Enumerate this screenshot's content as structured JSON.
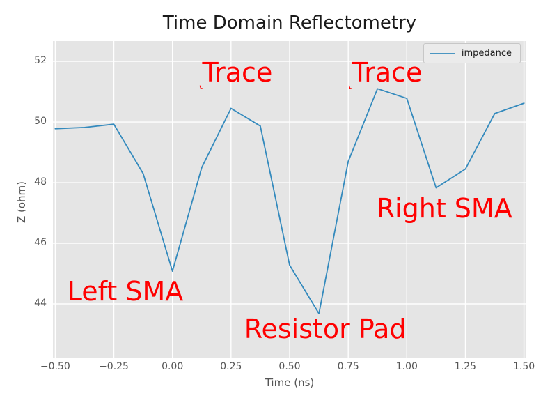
{
  "title": "Time Domain Reflectometry",
  "xlabel": "Time (ns)",
  "ylabel": "Z (ohm)",
  "legend": {
    "label": "impedance"
  },
  "colors": {
    "line": "#348abd",
    "annotation": "#ff0000",
    "plot_bg": "#e5e5e5",
    "grid": "#ffffff",
    "tick_text": "#555555"
  },
  "chart_data": {
    "type": "line",
    "title": "Time Domain Reflectometry",
    "xlabel": "Time (ns)",
    "ylabel": "Z (ohm)",
    "grid": true,
    "legend_position": "upper right",
    "xlim": [
      -0.51,
      1.51
    ],
    "ylim": [
      42.23,
      52.67
    ],
    "xticks": [
      -0.5,
      -0.25,
      0.0,
      0.25,
      0.5,
      0.75,
      1.0,
      1.25,
      1.5
    ],
    "xtick_labels": [
      "−0.50",
      "−0.25",
      "0.00",
      "0.25",
      "0.50",
      "0.75",
      "1.00",
      "1.25",
      "1.50"
    ],
    "yticks": [
      44,
      46,
      48,
      50,
      52
    ],
    "ytick_labels": [
      "44",
      "46",
      "48",
      "50",
      "52"
    ],
    "series": [
      {
        "name": "impedance",
        "x": [
          -0.5,
          -0.375,
          -0.25,
          -0.125,
          0.0,
          0.125,
          0.25,
          0.375,
          0.5,
          0.625,
          0.75,
          0.875,
          1.0,
          1.125,
          1.25,
          1.375,
          1.5
        ],
        "y": [
          49.78,
          49.82,
          49.93,
          48.3,
          45.08,
          48.5,
          50.45,
          49.87,
          45.28,
          43.68,
          48.7,
          51.1,
          50.78,
          47.83,
          48.45,
          50.28,
          50.62
        ]
      }
    ],
    "annotations": [
      {
        "text": "Trace",
        "x": 0.277,
        "y": 51.61
      },
      {
        "text": "Trace",
        "x": 0.916,
        "y": 51.61
      },
      {
        "text": "Left SMA",
        "x": -0.201,
        "y": 44.4
      },
      {
        "text": "Right SMA",
        "x": 1.16,
        "y": 47.13
      },
      {
        "text": "Resistor Pad",
        "x": 0.652,
        "y": 43.15
      }
    ],
    "arrow_marks": [
      {
        "x": 0.123,
        "y": 51.11
      },
      {
        "x": 0.759,
        "y": 51.11
      }
    ]
  }
}
